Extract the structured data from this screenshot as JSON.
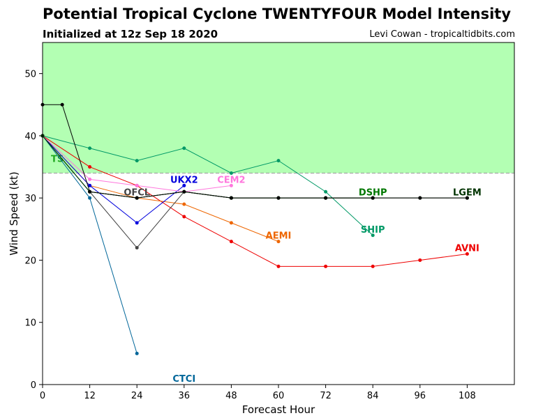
{
  "header": {
    "title": "Potential Tropical Cyclone TWENTYFOUR Model Intensity",
    "subtitle": "Initialized at 12z Sep 18 2020",
    "credit": "Levi Cowan - tropicaltidbits.com"
  },
  "chart_data": {
    "type": "line",
    "title": "Potential Tropical Cyclone TWENTYFOUR Model Intensity",
    "subtitle": "Initialized at 12z Sep 18 2020",
    "xlabel": "Forecast Hour",
    "ylabel": "Wind Speed (kt)",
    "xlim": [
      0,
      120
    ],
    "ylim": [
      0,
      55
    ],
    "xticks": [
      0,
      12,
      24,
      36,
      48,
      60,
      72,
      84,
      96,
      108
    ],
    "yticks": [
      0,
      10,
      20,
      30,
      40,
      50
    ],
    "ts_band": {
      "label": "TS",
      "from": 34,
      "to": 55,
      "color": "#b3ffb3",
      "line_color": "#999999",
      "label_color": "#22aa22"
    },
    "series": [
      {
        "name": "CTCI",
        "color": "#006699",
        "x": [
          0,
          12,
          24
        ],
        "y": [
          40,
          30,
          5
        ],
        "label_x": 36,
        "label_y": 1
      },
      {
        "name": "AVNI",
        "color": "#ee0000",
        "x": [
          0,
          12,
          24,
          36,
          48,
          60,
          72,
          84,
          96,
          108
        ],
        "y": [
          40,
          35,
          32,
          27,
          23,
          19,
          19,
          19,
          20,
          21
        ],
        "label_x": 108,
        "label_y": 22
      },
      {
        "name": "AEMI",
        "color": "#ee6600",
        "x": [
          0,
          12,
          24,
          36,
          48,
          60
        ],
        "y": [
          40,
          32,
          30,
          29,
          26,
          23
        ],
        "label_x": 60,
        "label_y": 24
      },
      {
        "name": "UKX2",
        "color": "#0000dd",
        "x": [
          0,
          12,
          24,
          36
        ],
        "y": [
          40,
          32,
          26,
          32
        ],
        "label_x": 36,
        "label_y": 33
      },
      {
        "name": "CEM2",
        "color": "#ff77dd",
        "x": [
          0,
          12,
          24,
          36,
          48
        ],
        "y": [
          40,
          33,
          32,
          31,
          32
        ],
        "label_x": 48,
        "label_y": 33
      },
      {
        "name": "SHIP",
        "color": "#009966",
        "x": [
          0,
          12,
          24,
          36,
          48,
          60,
          72,
          84
        ],
        "y": [
          40,
          38,
          36,
          38,
          34,
          36,
          31,
          24
        ],
        "label_x": 84,
        "label_y": 25
      },
      {
        "name": "OFCL",
        "color": "#444444",
        "x": [
          0,
          12,
          24,
          36,
          48,
          60,
          72,
          84
        ],
        "y": [
          40,
          31,
          22,
          31,
          30,
          30,
          30,
          30
        ],
        "label_x": 24,
        "label_y": 31
      },
      {
        "name": "DSHP",
        "color": "#007700",
        "x": [
          0,
          12,
          24,
          36,
          48,
          60,
          72,
          84
        ],
        "y": [
          40,
          31,
          30,
          31,
          30,
          30,
          30,
          30
        ],
        "label_x": 84,
        "label_y": 31
      },
      {
        "name": "LGEM",
        "color": "#003300",
        "x": [
          0,
          12,
          24,
          36,
          48,
          60,
          72,
          84,
          96,
          108
        ],
        "y": [
          40,
          31,
          30,
          31,
          30,
          30,
          30,
          30,
          30,
          30
        ],
        "label_x": 108,
        "label_y": 31
      },
      {
        "name": "",
        "color": "#000000",
        "x": [
          0,
          5,
          12,
          24,
          36,
          48,
          60,
          72,
          84,
          96,
          108
        ],
        "y": [
          45,
          45,
          31,
          30,
          31,
          30,
          30,
          30,
          30,
          30,
          30
        ],
        "label_x": null,
        "label_y": null
      }
    ]
  }
}
